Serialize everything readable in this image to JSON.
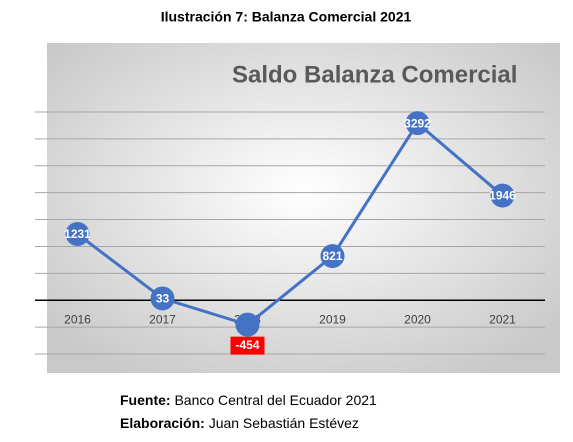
{
  "caption": "Ilustración 7: Balanza Comercial 2021",
  "chart_data": {
    "type": "line",
    "title": "Saldo Balanza Comercial",
    "categories": [
      "2016",
      "2017",
      "2018",
      "2019",
      "2020",
      "2021"
    ],
    "series": [
      {
        "name": "Saldo Balanza Comercial",
        "color": "#4472c4",
        "values": [
          1231,
          33,
          -454,
          821,
          3292,
          1946
        ]
      }
    ],
    "ylim": [
      -1000,
      3500
    ],
    "yticks": [
      -1000,
      -500,
      0,
      500,
      1000,
      1500,
      2000,
      2500,
      3000,
      3500
    ],
    "grid": true
  },
  "footer": {
    "source_label": "Fuente:",
    "source": "Banco Central del Ecuador 2021",
    "author_label": "Elaboración:",
    "author": "Juan Sebastián Estévez"
  }
}
